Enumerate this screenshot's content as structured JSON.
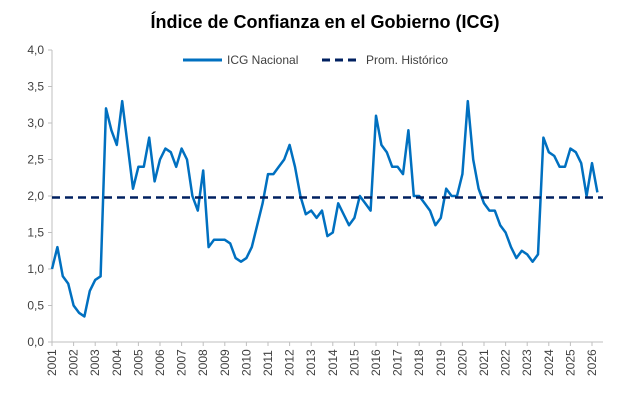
{
  "chart_data": {
    "type": "line",
    "title": "Índice de Confianza en el Gobierno (ICG)",
    "categories": [
      "2001",
      null,
      null,
      null,
      "2002",
      null,
      null,
      null,
      "2003",
      null,
      null,
      null,
      "2004",
      null,
      null,
      null,
      "2005",
      null,
      null,
      null,
      "2006",
      null,
      null,
      null,
      "2007",
      null,
      null,
      null,
      "2008",
      null,
      null,
      null,
      "2009",
      null,
      null,
      null,
      "2010",
      null,
      null,
      null,
      "2011",
      null,
      null,
      null,
      "2012",
      null,
      null,
      null,
      "2013",
      null,
      null,
      null,
      "2014",
      null,
      null,
      null,
      "2015",
      null,
      null,
      null,
      "2016",
      null,
      null,
      null,
      "2017",
      null,
      null,
      null,
      "2018",
      null,
      null,
      null,
      "2019",
      null,
      null,
      null,
      "2020",
      null,
      null,
      null,
      "2021",
      null,
      null,
      null,
      "2022",
      null,
      null,
      null,
      "2023",
      null,
      null,
      null,
      "2024",
      null,
      null,
      null,
      "2025",
      null,
      null,
      null,
      "2026",
      null
    ],
    "series": [
      {
        "name": "ICG Nacional",
        "color": "#0070c0",
        "values": [
          1.0,
          1.3,
          0.9,
          0.8,
          0.5,
          0.4,
          0.35,
          0.7,
          0.85,
          0.9,
          3.2,
          2.9,
          2.7,
          3.3,
          2.7,
          2.1,
          2.4,
          2.4,
          2.8,
          2.2,
          2.5,
          2.65,
          2.6,
          2.4,
          2.65,
          2.5,
          2.0,
          1.8,
          2.35,
          1.3,
          1.4,
          1.4,
          1.4,
          1.35,
          1.15,
          1.1,
          1.15,
          1.3,
          1.6,
          1.9,
          2.3,
          2.3,
          2.4,
          2.5,
          2.7,
          2.4,
          2.0,
          1.75,
          1.8,
          1.7,
          1.8,
          1.45,
          1.5,
          1.9,
          1.75,
          1.6,
          1.7,
          2.0,
          1.9,
          1.8,
          3.1,
          2.7,
          2.6,
          2.4,
          2.4,
          2.3,
          2.9,
          2.0,
          2.0,
          1.9,
          1.8,
          1.6,
          1.7,
          2.1,
          2.0,
          2.0,
          2.3,
          3.3,
          2.5,
          2.1,
          1.9,
          1.8,
          1.8,
          1.6,
          1.5,
          1.3,
          1.15,
          1.25,
          1.2,
          1.1,
          1.2,
          2.8,
          2.6,
          2.55,
          2.4,
          2.4,
          2.65,
          2.6,
          2.45,
          2.0,
          2.45,
          2.05
        ]
      }
    ],
    "average": {
      "name": "Prom. Histórico",
      "value": 1.98,
      "color": "#002060"
    },
    "ylim": [
      0,
      4
    ],
    "yticks": [
      {
        "value": 0,
        "label": "0,0"
      },
      {
        "value": 0.5,
        "label": "0,5"
      },
      {
        "value": 1,
        "label": "1,0"
      },
      {
        "value": 1.5,
        "label": "1,5"
      },
      {
        "value": 2,
        "label": "2,0"
      },
      {
        "value": 2.5,
        "label": "2,5"
      },
      {
        "value": 3,
        "label": "3,0"
      },
      {
        "value": 3.5,
        "label": "3,5"
      },
      {
        "value": 4,
        "label": "4,0"
      }
    ],
    "grid": false,
    "legend": "top"
  }
}
